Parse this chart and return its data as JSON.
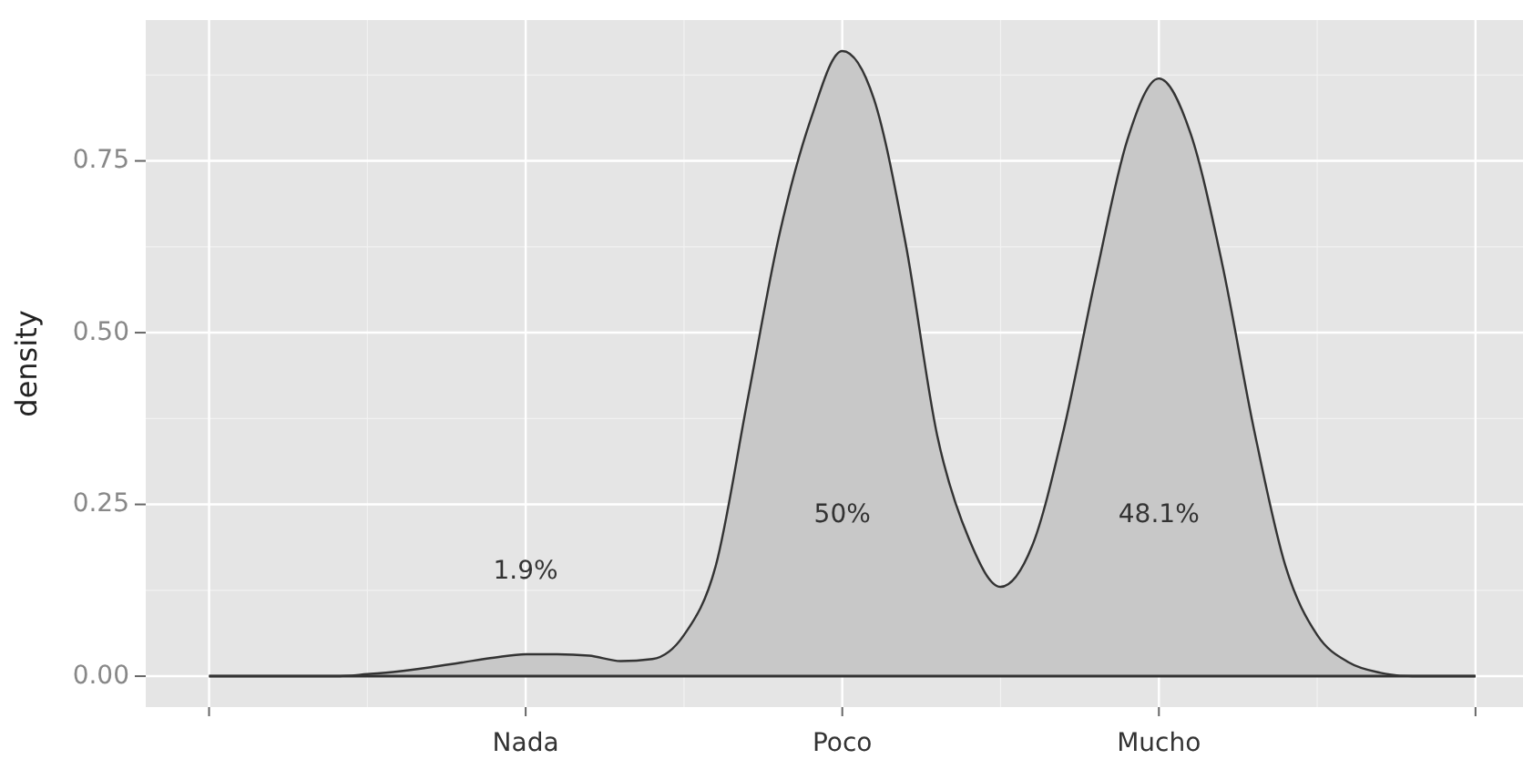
{
  "chart_data": {
    "type": "area",
    "ylabel": "density",
    "categories": [
      null,
      null,
      null,
      null,
      null,
      null,
      null,
      null,
      null,
      null,
      "Nada",
      null,
      null,
      null,
      null,
      null,
      null,
      null,
      null,
      null,
      "Poco",
      null,
      null,
      null,
      null,
      null,
      null,
      null,
      null,
      null,
      "Mucho",
      null,
      null,
      null,
      null,
      null,
      null,
      null,
      null,
      null,
      null
    ],
    "series": [
      {
        "color": "#c8c8c8",
        "values": [
          0,
          0,
          0,
          0,
          0,
          0.003,
          0.007,
          0.013,
          0.02,
          0.027,
          0.032,
          0.032,
          0.03,
          0.022,
          0.025,
          0.06,
          0.16,
          0.4,
          0.64,
          0.81,
          0.91,
          0.84,
          0.63,
          0.35,
          0.2,
          0.13,
          0.19,
          0.36,
          0.58,
          0.78,
          0.87,
          0.79,
          0.6,
          0.36,
          0.16,
          0.06,
          0.02,
          0.005,
          0,
          0,
          0
        ]
      }
    ],
    "ylim": [
      -0.045,
      0.955
    ],
    "yticks": [
      {
        "value": 0,
        "label": "0.00"
      },
      {
        "value": 0.25,
        "label": "0.25"
      },
      {
        "value": 0.5,
        "label": "0.50"
      },
      {
        "value": 0.75,
        "label": "0.75"
      }
    ],
    "grid": true,
    "annotations": [
      "1.9%",
      "50%",
      "48.1%"
    ]
  }
}
